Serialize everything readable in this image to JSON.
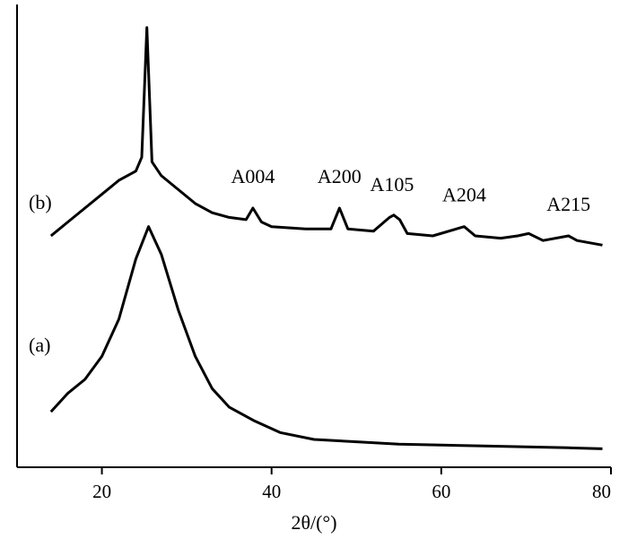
{
  "chart_data": {
    "type": "line",
    "xlabel": "2θ/(°)",
    "xlim": [
      10,
      80
    ],
    "x_ticks": [
      20,
      40,
      60,
      80
    ],
    "x_tick_labels": [
      "20",
      "40",
      "60",
      "80"
    ],
    "ylabel": "",
    "y_ticks_shown": false,
    "series": [
      {
        "name": "(a)",
        "x": [
          14,
          16,
          18,
          20,
          22,
          24,
          25.5,
          27,
          29,
          31,
          33,
          35,
          38,
          41,
          45,
          50,
          55,
          60,
          65,
          70,
          75,
          79
        ],
        "values": [
          0.12,
          0.16,
          0.19,
          0.24,
          0.32,
          0.45,
          0.52,
          0.46,
          0.34,
          0.24,
          0.17,
          0.13,
          0.1,
          0.075,
          0.06,
          0.055,
          0.05,
          0.048,
          0.046,
          0.044,
          0.042,
          0.04
        ]
      },
      {
        "name": "(b)",
        "x": [
          14,
          16,
          18,
          20,
          22,
          24,
          24.7,
          25.3,
          25.9,
          27,
          29,
          31,
          33,
          35,
          37,
          37.8,
          38.8,
          40,
          44,
          47,
          48,
          49,
          52,
          53.9,
          54.4,
          55.1,
          56,
          59,
          62.7,
          64,
          67,
          69,
          70.3,
          72,
          75,
          76,
          79
        ],
        "values": [
          0.5,
          0.53,
          0.56,
          0.59,
          0.62,
          0.64,
          0.67,
          0.95,
          0.66,
          0.63,
          0.6,
          0.57,
          0.55,
          0.54,
          0.535,
          0.56,
          0.53,
          0.52,
          0.515,
          0.515,
          0.56,
          0.515,
          0.51,
          0.54,
          0.545,
          0.535,
          0.505,
          0.5,
          0.52,
          0.5,
          0.495,
          0.5,
          0.505,
          0.49,
          0.5,
          0.49,
          0.48
        ]
      }
    ],
    "annotations": [
      {
        "text": "A004",
        "x": 37.8
      },
      {
        "text": "A200",
        "x": 48.0
      },
      {
        "text": "A105",
        "x": 54.2
      },
      {
        "text": "A204",
        "x": 62.7
      },
      {
        "text": "A215",
        "x": 75.0
      }
    ],
    "grid": false,
    "legend": "none"
  }
}
